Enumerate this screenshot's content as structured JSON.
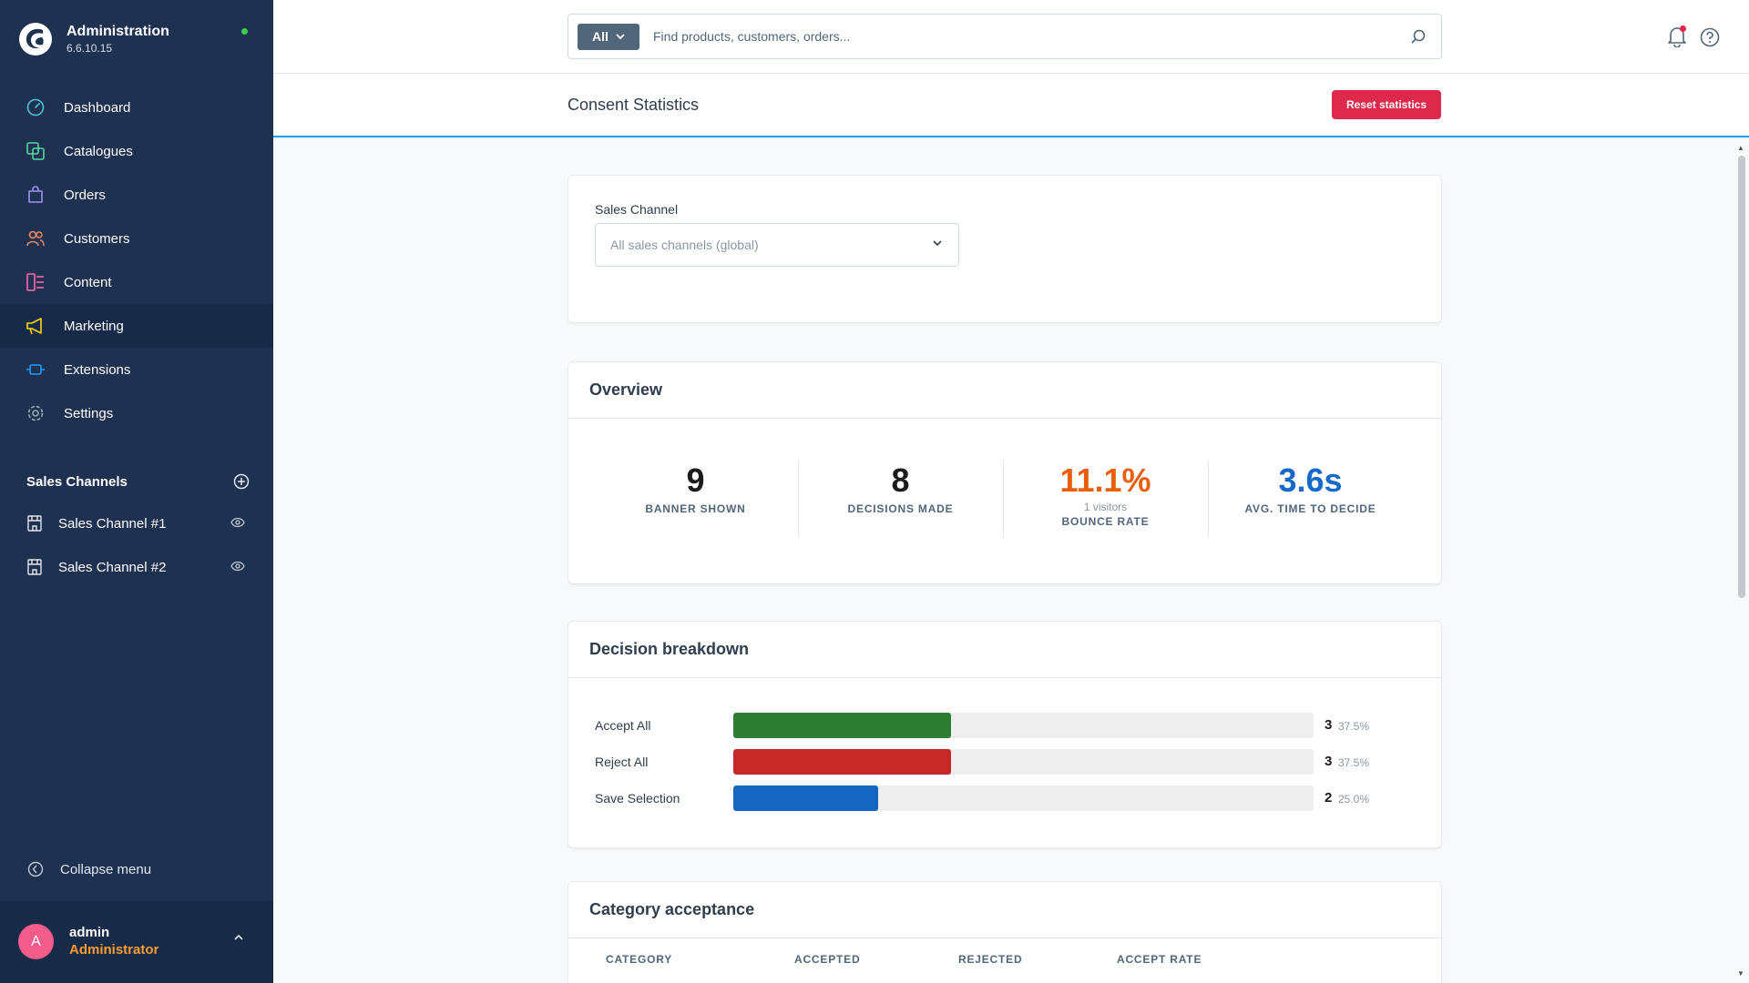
{
  "brand": {
    "title": "Administration",
    "version": "6.6.10.15",
    "status_color": "#37d046"
  },
  "nav": {
    "items": [
      {
        "label": "Dashboard",
        "icon": "dashboard-icon",
        "color": "#4fc3d9"
      },
      {
        "label": "Catalogues",
        "icon": "catalogue-icon",
        "color": "#57d9a3"
      },
      {
        "label": "Orders",
        "icon": "orders-icon",
        "color": "#a092f0"
      },
      {
        "label": "Customers",
        "icon": "customers-icon",
        "color": "#f88962"
      },
      {
        "label": "Content",
        "icon": "content-icon",
        "color": "#ff68b4"
      },
      {
        "label": "Marketing",
        "icon": "megaphone-icon",
        "color": "#ffd700",
        "active": true
      },
      {
        "label": "Extensions",
        "icon": "extensions-icon",
        "color": "#189eff"
      },
      {
        "label": "Settings",
        "icon": "settings-icon",
        "color": "#9aa8b5"
      }
    ]
  },
  "sales_channels": {
    "title": "Sales Channels",
    "items": [
      {
        "label": "Sales Channel #1"
      },
      {
        "label": "Sales Channel #2"
      }
    ]
  },
  "collapse_label": "Collapse menu",
  "user": {
    "initial": "A",
    "name": "admin",
    "role": "Administrator"
  },
  "search": {
    "type_label": "All",
    "placeholder": "Find products, customers, orders..."
  },
  "page": {
    "title": "Consent Statistics",
    "reset_label": "Reset statistics"
  },
  "filter": {
    "label": "Sales Channel",
    "placeholder": "All sales channels (global)"
  },
  "overview": {
    "title": "Overview",
    "stats": [
      {
        "value": "9",
        "label": "BANNER SHOWN",
        "color": "#1b1b1b"
      },
      {
        "value": "8",
        "label": "DECISIONS MADE",
        "color": "#1b1b1b"
      },
      {
        "value": "11.1%",
        "sub": "1 visitors",
        "label": "BOUNCE RATE",
        "color": "#e8600e"
      },
      {
        "value": "3.6s",
        "label": "AVG. TIME TO DECIDE",
        "color": "#1469c9"
      }
    ]
  },
  "decision": {
    "title": "Decision breakdown",
    "rows": [
      {
        "label": "Accept All",
        "count": "3",
        "pct": "37.5%",
        "fraction": 0.375,
        "color": "#2e7d32"
      },
      {
        "label": "Reject All",
        "count": "3",
        "pct": "37.5%",
        "fraction": 0.375,
        "color": "#c62828"
      },
      {
        "label": "Save Selection",
        "count": "2",
        "pct": "25.0%",
        "fraction": 0.25,
        "color": "#1565c0"
      }
    ]
  },
  "category": {
    "title": "Category acceptance",
    "columns": [
      "CATEGORY",
      "ACCEPTED",
      "REJECTED",
      "ACCEPT RATE"
    ]
  }
}
